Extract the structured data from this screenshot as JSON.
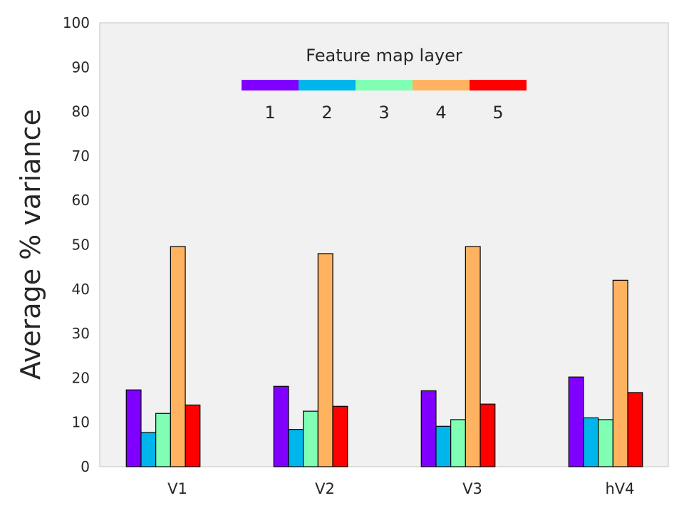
{
  "chart_data": {
    "type": "bar",
    "title": "",
    "xlabel": "",
    "ylabel": "Average % variance",
    "ylim": [
      0,
      100
    ],
    "yticks": [
      0,
      10,
      20,
      30,
      40,
      50,
      60,
      70,
      80,
      90,
      100
    ],
    "categories": [
      "V1",
      "V2",
      "V3",
      "hV4"
    ],
    "legend": {
      "title": "Feature map layer",
      "placement": "top-center"
    },
    "grid": false,
    "series": [
      {
        "name": "1",
        "color": "#8000ff",
        "values": [
          17.3,
          18.1,
          17.1,
          20.2
        ]
      },
      {
        "name": "2",
        "color": "#00b5eb",
        "values": [
          7.7,
          8.4,
          9.1,
          11.0
        ]
      },
      {
        "name": "3",
        "color": "#80ffb4",
        "values": [
          12.0,
          12.5,
          10.6,
          10.6
        ]
      },
      {
        "name": "4",
        "color": "#ffb360",
        "values": [
          49.6,
          48.0,
          49.6,
          42.0
        ]
      },
      {
        "name": "5",
        "color": "#ff0000",
        "values": [
          13.9,
          13.6,
          14.1,
          16.7
        ]
      }
    ]
  }
}
